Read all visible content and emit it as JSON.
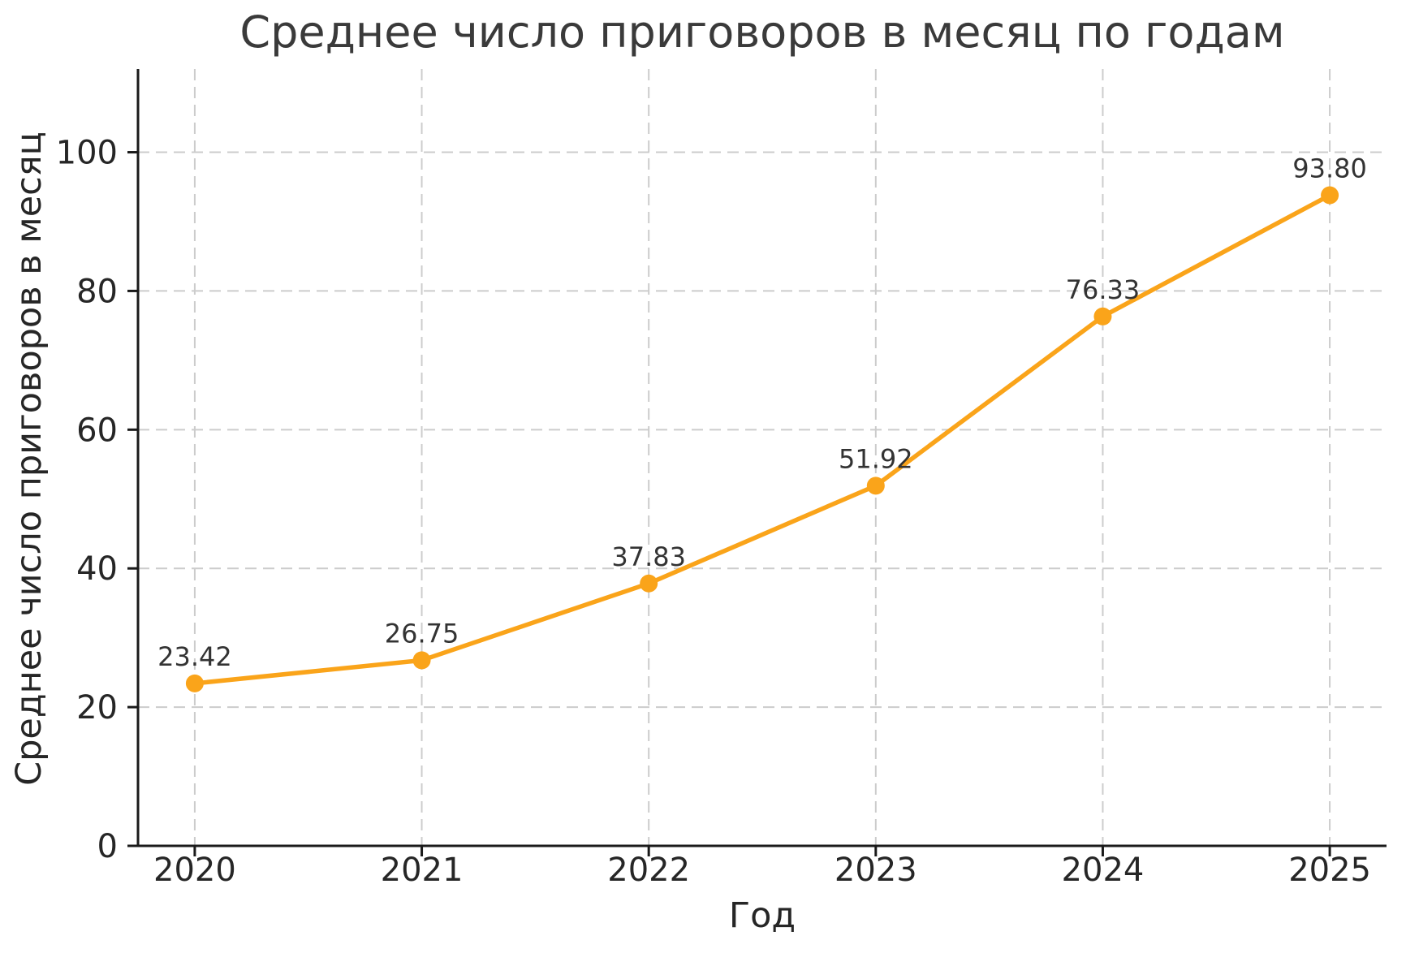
{
  "chart_data": {
    "type": "line",
    "title": "Среднее число приговоров в месяц по годам",
    "xlabel": "Год",
    "ylabel": "Среднее число приговоров в месяц",
    "x": [
      2020,
      2021,
      2022,
      2023,
      2024,
      2025
    ],
    "values": [
      23.42,
      26.75,
      37.83,
      51.92,
      76.33,
      93.8
    ],
    "point_labels": [
      "23.42",
      "26.75",
      "37.83",
      "51.92",
      "76.33",
      "93.80"
    ],
    "xtick_labels": [
      "2020",
      "2021",
      "2022",
      "2023",
      "2024",
      "2025"
    ],
    "yticks": [
      0,
      20,
      40,
      60,
      80,
      100
    ],
    "xlim": [
      2019.75,
      2025.25
    ],
    "ylim": [
      0,
      112
    ],
    "grid": true,
    "grid_style": "dashed",
    "legend_position": "none",
    "colors": {
      "line": "#FAA41A",
      "marker": "#FAA41A",
      "grid": "#cccccc",
      "axis": "#1a1a1a",
      "text": "#262626",
      "background": "#ffffff"
    }
  }
}
